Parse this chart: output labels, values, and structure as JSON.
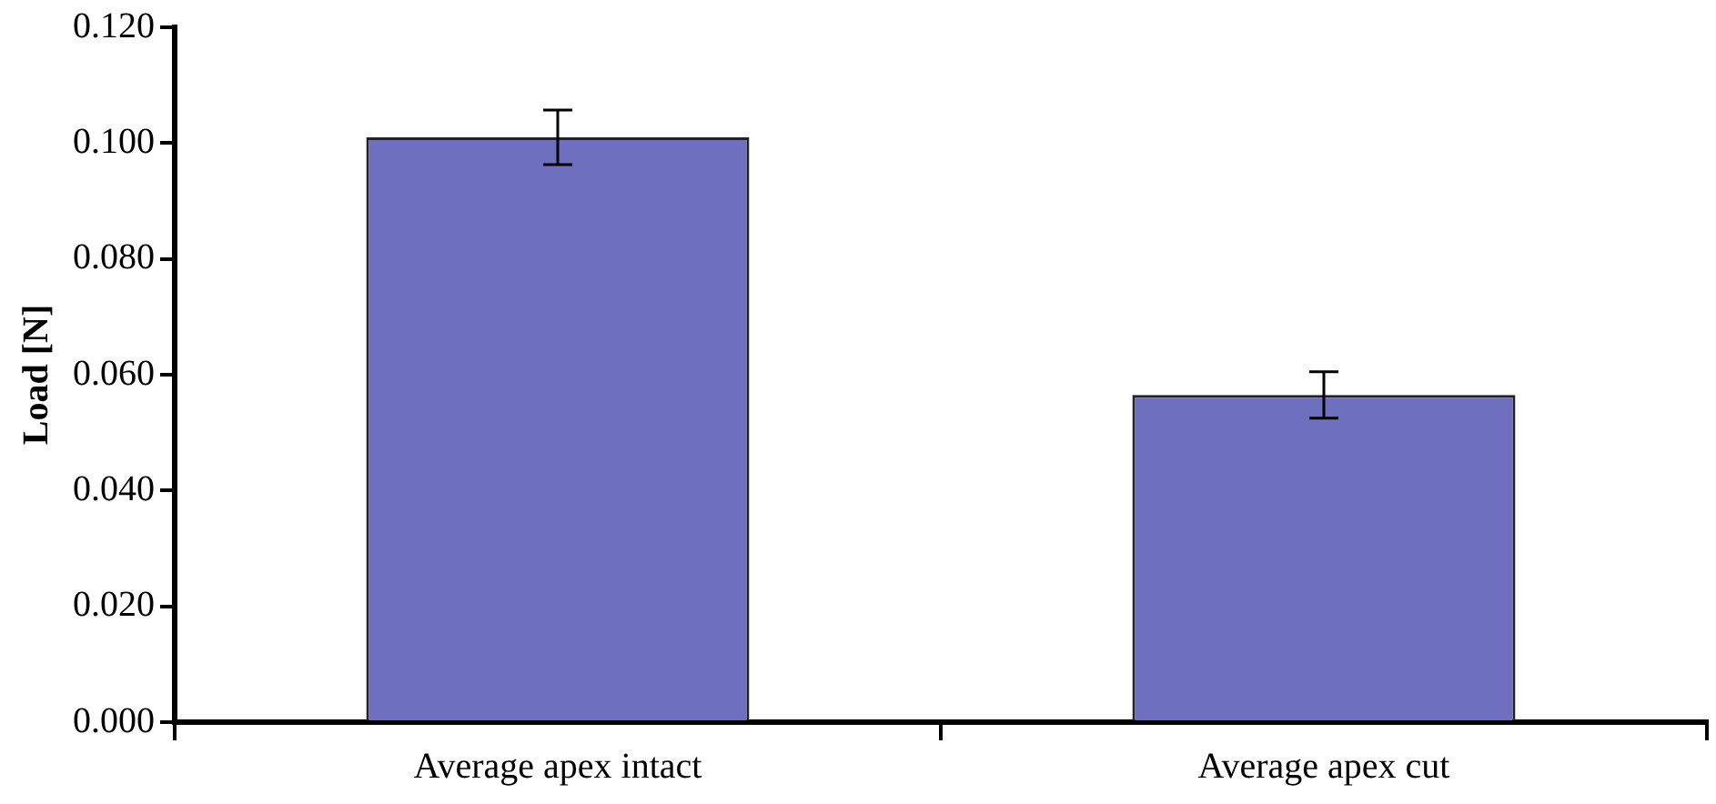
{
  "chart_data": {
    "type": "bar",
    "ylabel": "Load [N]",
    "categories": [
      "Average apex intact",
      "Average apex cut"
    ],
    "values": [
      0.101,
      0.0565
    ],
    "errors": [
      0.0047,
      0.004
    ],
    "color": "#6f6fc0",
    "ylim": [
      0,
      0.12
    ],
    "yticks": [
      {
        "value": 0,
        "label": "0.000"
      },
      {
        "value": 0.02,
        "label": "0.020"
      },
      {
        "value": 0.04,
        "label": "0.040"
      },
      {
        "value": 0.06,
        "label": "0.060"
      },
      {
        "value": 0.08,
        "label": "0.080"
      },
      {
        "value": 0.1,
        "label": "0.100"
      },
      {
        "value": 0.12,
        "label": "0.120"
      }
    ],
    "grid": false,
    "legend": false
  }
}
